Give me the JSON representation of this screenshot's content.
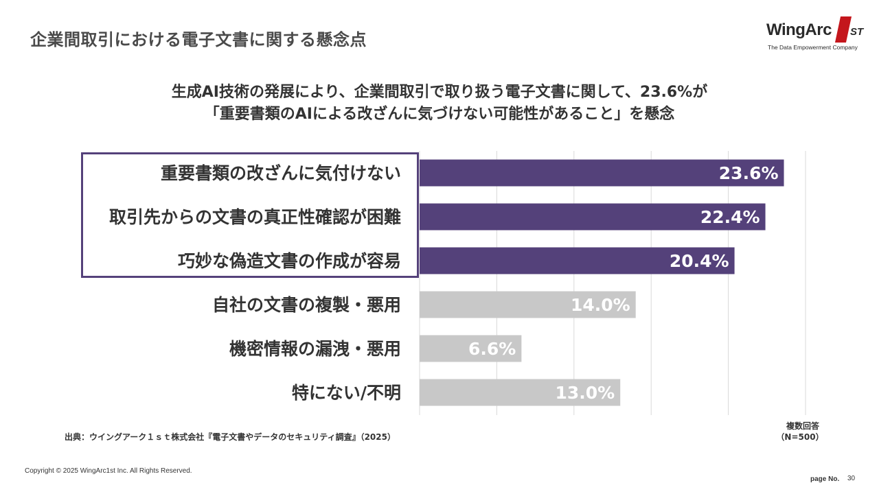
{
  "page": {
    "title": "企業間取引における電子文書に関する懸念点",
    "headline_line1": "生成AI技術の発展により、企業間取引で取り扱う電子文書に関して、23.6%が",
    "headline_line2": "「重要書類のAIによる改ざんに気づけない可能性があること」を懸念"
  },
  "logo": {
    "wordmark": "WingArc",
    "suffix": "ST",
    "tagline": "The Data Empowerment Company"
  },
  "chart_data": {
    "type": "bar",
    "orientation": "horizontal",
    "categories": [
      "重要書類の改ざんに気付けない",
      "取引先からの文書の真正性確認が困難",
      "巧妙な偽造文書の作成が容易",
      "自社の文書の複製・悪用",
      "機密情報の漏洩・悪用",
      "特にない/不明"
    ],
    "values": [
      23.6,
      22.4,
      20.4,
      14.0,
      6.6,
      13.0
    ],
    "value_labels": [
      "23.6%",
      "22.4%",
      "20.4%",
      "14.0%",
      "6.6%",
      "13.0%"
    ],
    "highlighted": [
      true,
      true,
      true,
      false,
      false,
      false
    ],
    "xlim": [
      0,
      25
    ],
    "grid_step": 5,
    "unit": "%",
    "colors": {
      "highlight": "#54417a",
      "normal": "#c8c8c8",
      "grid": "#d9d9d9",
      "box": "#54417a"
    }
  },
  "notes": {
    "multi_answer": "複数回答",
    "sample_size": "（N=500）",
    "source": "出典：ウイングアーク１ｓｔ株式会社『電子文書やデータのセキュリティ調査』（2025）"
  },
  "footer": {
    "copyright": "Copyright © 2025 WingArc1st Inc.  All Rights Reserved.",
    "page_no_label": "page No.",
    "page_no": "30"
  }
}
